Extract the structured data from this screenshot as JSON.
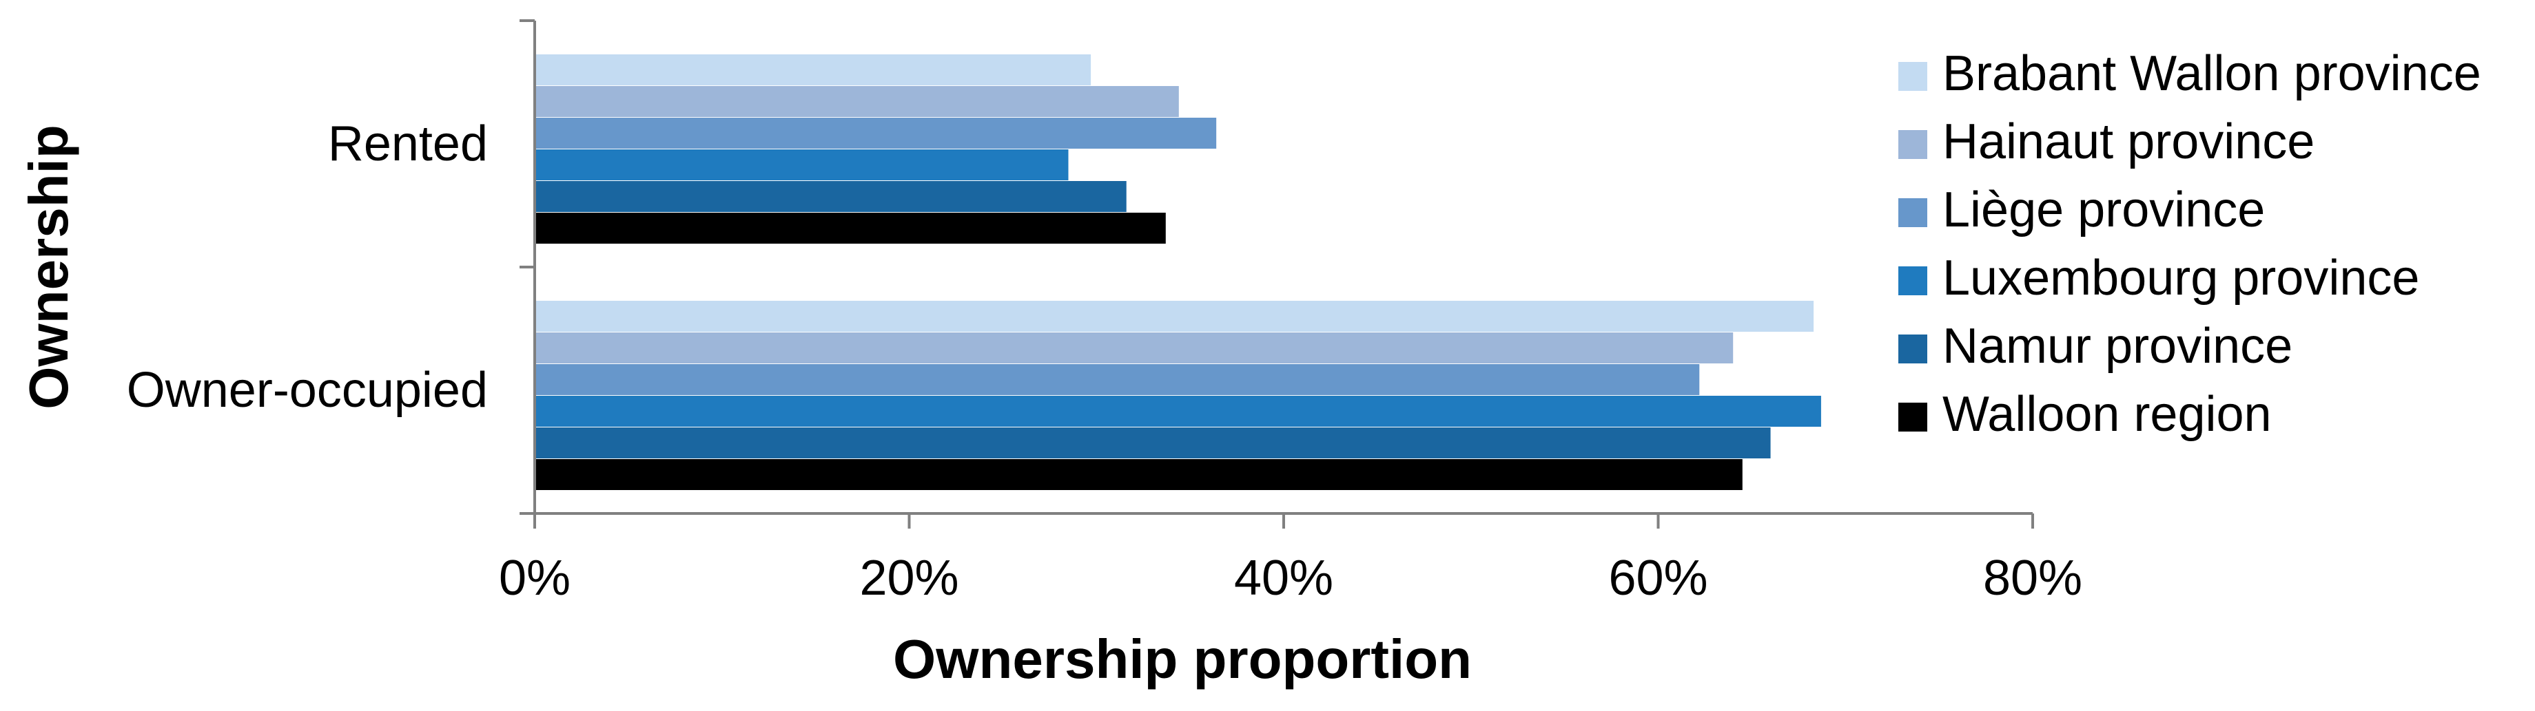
{
  "chart_data": {
    "type": "bar",
    "orientation": "horizontal",
    "title": "",
    "xlabel": "Ownership proportion",
    "ylabel": "Ownership",
    "xlim": [
      0,
      80
    ],
    "xticks": [
      "0%",
      "20%",
      "40%",
      "60%",
      "80%"
    ],
    "categories": [
      "Rented",
      "Owner-occupied"
    ],
    "series": [
      {
        "name": "Brabant Wallon province",
        "color": "#c3dbf2",
        "values": [
          29.7,
          68.3
        ]
      },
      {
        "name": "Hainaut province",
        "color": "#9db6d9",
        "values": [
          34.4,
          64.0
        ]
      },
      {
        "name": "Liège province",
        "color": "#6797cb",
        "values": [
          36.4,
          62.2
        ]
      },
      {
        "name": "Luxembourg province",
        "color": "#1f7bbf",
        "values": [
          28.5,
          68.7
        ]
      },
      {
        "name": "Namur province",
        "color": "#1a66a0",
        "values": [
          31.6,
          66.0
        ]
      },
      {
        "name": "Walloon region",
        "color": "#000000",
        "values": [
          33.7,
          64.5
        ]
      }
    ],
    "grid": false,
    "legend_position": "right"
  }
}
